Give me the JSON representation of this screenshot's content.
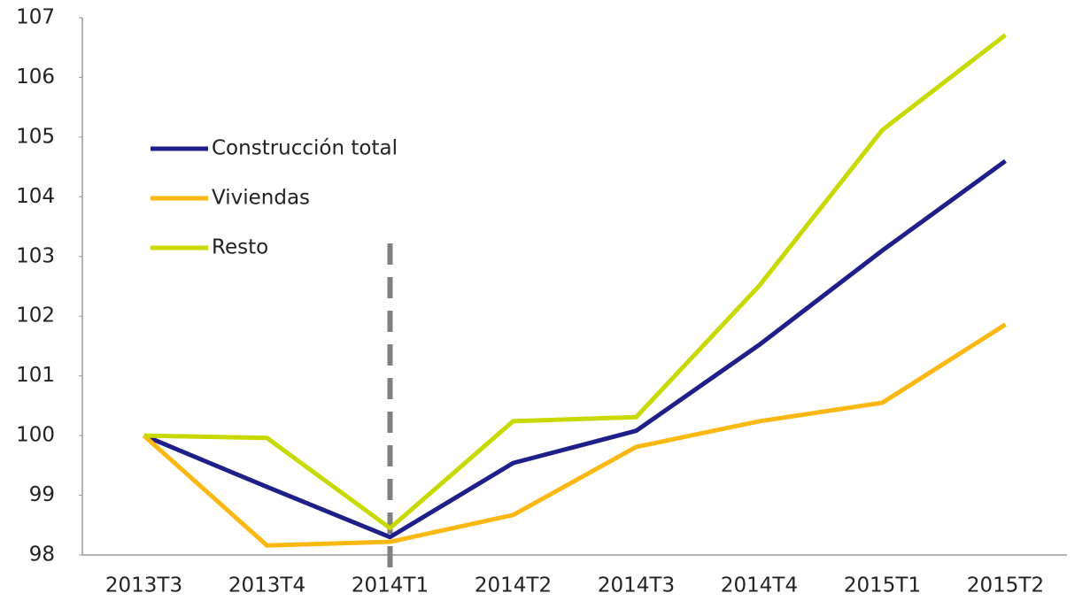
{
  "chart_data": {
    "type": "line",
    "categories": [
      "2013T3",
      "2013T4",
      "2014T1",
      "2014T2",
      "2014T3",
      "2014T4",
      "2015T1",
      "2015T2"
    ],
    "series": [
      {
        "name": "Construcción total",
        "color": "#1f1f8a",
        "values": [
          100,
          99.14,
          98.3,
          99.54,
          100.08,
          101.52,
          103.1,
          104.6
        ]
      },
      {
        "name": "Viviendas",
        "color": "#fbb813",
        "values": [
          100,
          98.16,
          98.22,
          98.67,
          99.81,
          100.24,
          100.55,
          101.86
        ]
      },
      {
        "name": "Resto",
        "color": "#c8d900",
        "values": [
          100,
          99.96,
          98.45,
          100.24,
          100.31,
          102.51,
          105.12,
          106.71
        ]
      }
    ],
    "ylim": [
      98,
      107
    ],
    "yticks": [
      98,
      99,
      100,
      101,
      102,
      103,
      104,
      105,
      106,
      107
    ],
    "grid": false,
    "legend": "upper left"
  }
}
